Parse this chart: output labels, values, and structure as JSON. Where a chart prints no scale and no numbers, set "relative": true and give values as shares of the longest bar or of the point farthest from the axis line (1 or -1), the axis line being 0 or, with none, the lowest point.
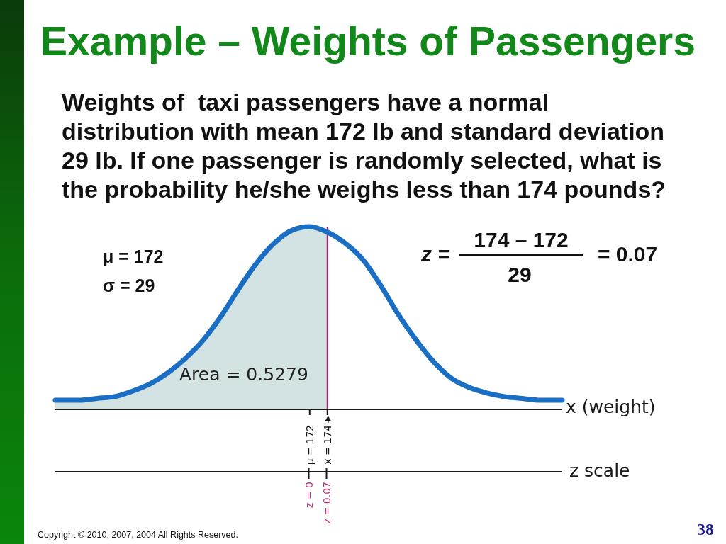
{
  "chart_data": {
    "type": "line",
    "title": "Example – Weights of Passengers",
    "subtitle": "Weights of  taxi passengers have a normal distribution with mean 172 lb and standard deviation 29 lb. If one passenger is randomly selected, what is the probability he/she weighs less than 174 pounds?",
    "xlabel": "x (weight)",
    "x2label": "z scale",
    "relative": true,
    "xlim": [
      143.3,
      200.5
    ],
    "xticks": [
      {
        "value": 172,
        "label": "μ = 172"
      },
      {
        "value": 174,
        "label": "x = 174"
      }
    ],
    "x2lim": [
      -1,
      1
    ],
    "x2ticks": [
      {
        "value": 0,
        "label": "z = 0"
      },
      {
        "value": 0.07,
        "label": "z = 0.07"
      }
    ],
    "series": [
      {
        "type": "area",
        "color": "#d3e3e4",
        "x": [
          143.3,
          146,
          148,
          150,
          152,
          154,
          156,
          158,
          160,
          162,
          164,
          166,
          168,
          170,
          172,
          174
        ],
        "values": [
          0.05,
          0.05,
          0.06,
          0.07,
          0.1,
          0.14,
          0.2,
          0.28,
          0.38,
          0.51,
          0.66,
          0.8,
          0.91,
          0.98,
          1,
          0.97
        ]
      },
      {
        "type": "line",
        "color": "#1a6fc4",
        "x": [
          143.3,
          146,
          148,
          150,
          152,
          154,
          156,
          158,
          160,
          162,
          164,
          166,
          168,
          170,
          172,
          174,
          176,
          178,
          180,
          182,
          184,
          186,
          188,
          190,
          192,
          194,
          196,
          198,
          200.5
        ],
        "values": [
          0.05,
          0.05,
          0.06,
          0.07,
          0.1,
          0.14,
          0.2,
          0.28,
          0.38,
          0.51,
          0.66,
          0.8,
          0.91,
          0.98,
          1,
          0.97,
          0.91,
          0.82,
          0.68,
          0.52,
          0.38,
          0.26,
          0.17,
          0.12,
          0.09,
          0.07,
          0.06,
          0.05,
          0.05
        ]
      }
    ],
    "ref_lines": [
      {
        "axis": "x",
        "value": 174,
        "color": "#b5206e"
      }
    ],
    "annotations": [
      "μ = 172",
      "σ = 29",
      "Area = 0.5279",
      "z =",
      "174 – 172",
      "29",
      "= 0.07",
      "Copyright © 2010, 2007, 2004 All Rights Reserved.",
      "38"
    ]
  }
}
